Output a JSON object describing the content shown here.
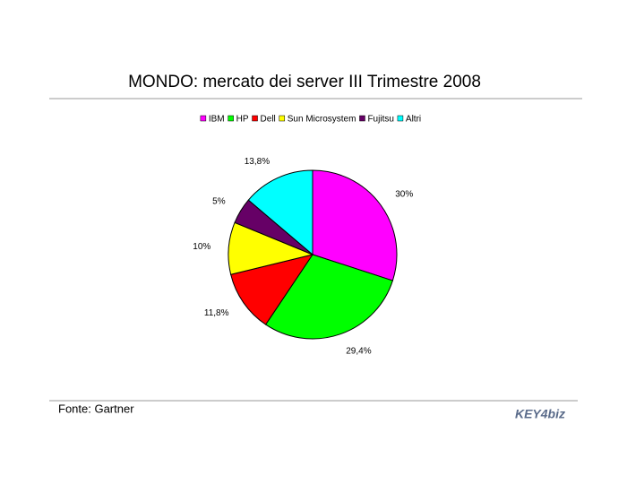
{
  "chart_data": {
    "type": "pie",
    "title": "MONDO: mercato dei server III Trimestre 2008",
    "categories": [
      "IBM",
      "HP",
      "Dell",
      "Sun Microsystem",
      "Fujitsu",
      "Altri"
    ],
    "values": [
      30,
      29.4,
      11.8,
      10,
      5,
      13.8
    ],
    "value_labels": [
      "30%",
      "29,4%",
      "11,8%",
      "10%",
      "5%",
      "13,8%"
    ],
    "colors": [
      "#ff00ff",
      "#00ff00",
      "#ff0000",
      "#ffff00",
      "#660066",
      "#00ffff"
    ],
    "source": "Fonte: Gartner",
    "logo": "KEY4biz"
  }
}
